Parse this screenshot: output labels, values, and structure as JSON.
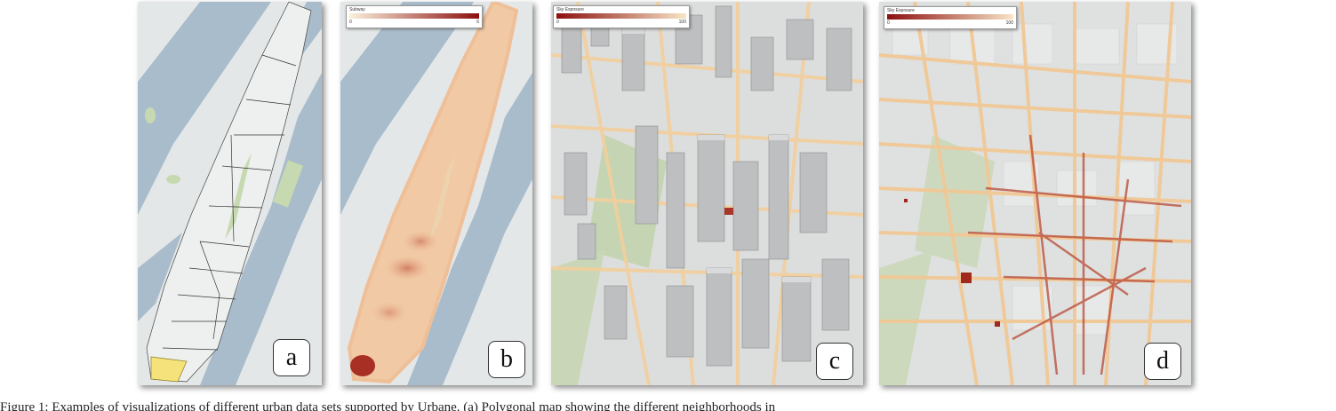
{
  "figure": {
    "caption_visible": "Figure 1:  Examples of visualizations of different urban data sets supported by Urbane. (a) Polygonal map showing the different neighborhoods in",
    "panels": [
      {
        "id": "a",
        "label": "a",
        "layer": "Neighborhoods"
      },
      {
        "id": "b",
        "label": "b",
        "legend": {
          "title": "Subway",
          "min": "0",
          "max": "6",
          "colors": [
            "#fbf1dc",
            "#8c0f0f"
          ]
        }
      },
      {
        "id": "c",
        "label": "c",
        "legend": {
          "title": "Sky Exposure",
          "min": "0",
          "max": "100",
          "colors": [
            "#8c1010",
            "#f8e5c6"
          ]
        }
      },
      {
        "id": "d",
        "label": "d",
        "legend": {
          "title": "Sky Exposure",
          "min": "0",
          "max": "100",
          "colors": [
            "#8c1010",
            "#f8e5c6"
          ]
        }
      }
    ]
  },
  "colors": {
    "water": "#a9bccb",
    "land": "#e3e6e7",
    "park": "#c9d9b4",
    "building": "#b9bbbd",
    "road": "#f4d4a6",
    "heat_high": "#b13a2a"
  }
}
